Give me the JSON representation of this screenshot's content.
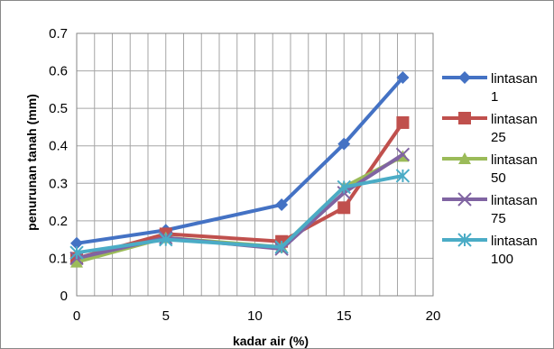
{
  "chart_data": {
    "type": "line",
    "xlabel": "kadar air (%)",
    "ylabel": "penurunan tanah (mm)",
    "xlim": [
      0,
      20
    ],
    "ylim": [
      0,
      0.7
    ],
    "x_ticks": [
      "0",
      "5",
      "10",
      "15",
      "20"
    ],
    "y_ticks": [
      "0",
      "0.1",
      "0.2",
      "0.3",
      "0.4",
      "0.5",
      "0.6",
      "0.7"
    ],
    "x_tick_values": [
      0,
      5,
      10,
      15,
      20
    ],
    "y_tick_values": [
      0,
      0.1,
      0.2,
      0.3,
      0.4,
      0.5,
      0.6,
      0.7
    ],
    "grid": true,
    "legend_position": "right",
    "x": [
      0,
      5,
      11.5,
      15,
      18.3
    ],
    "series": [
      {
        "name": "lintasan 1",
        "legend_lines": [
          "lintasan",
          "1"
        ],
        "color": "#4472C4",
        "marker": "diamond",
        "values": [
          0.14,
          0.175,
          0.243,
          0.405,
          0.582
        ]
      },
      {
        "name": "lintasan 25",
        "legend_lines": [
          "lintasan",
          "25"
        ],
        "color": "#C0504D",
        "marker": "square",
        "values": [
          0.1,
          0.165,
          0.145,
          0.235,
          0.462
        ]
      },
      {
        "name": "lintasan 50",
        "legend_lines": [
          "lintasan",
          "50"
        ],
        "color": "#9BBB59",
        "marker": "triangle",
        "values": [
          0.09,
          0.155,
          0.13,
          0.29,
          0.372
        ]
      },
      {
        "name": "lintasan 75",
        "legend_lines": [
          "lintasan",
          "75"
        ],
        "color": "#8064A2",
        "marker": "x",
        "values": [
          0.1,
          0.155,
          0.125,
          0.275,
          0.377
        ]
      },
      {
        "name": "lintasan 100",
        "legend_lines": [
          "lintasan",
          "100"
        ],
        "color": "#4BACC6",
        "marker": "star",
        "values": [
          0.115,
          0.15,
          0.13,
          0.29,
          0.32
        ]
      }
    ]
  }
}
